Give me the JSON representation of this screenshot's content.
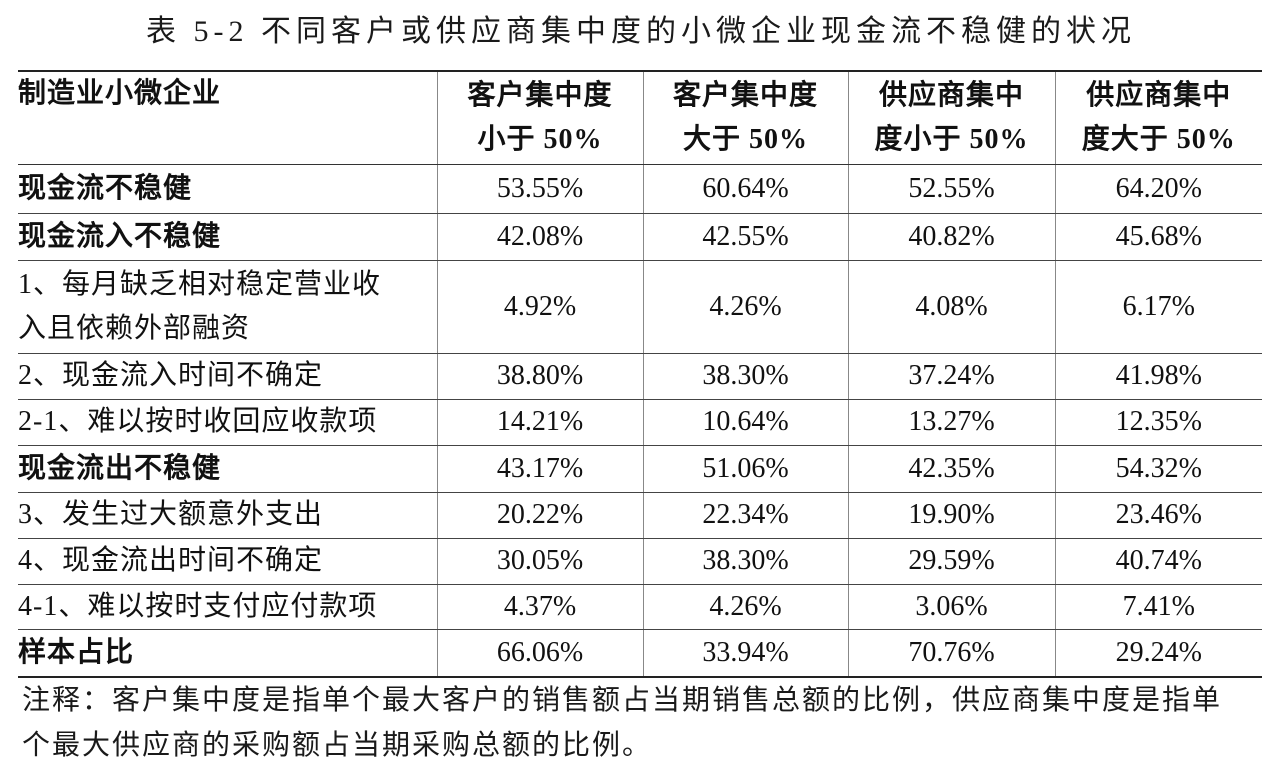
{
  "title": "表 5-2 不同客户或供应商集中度的小微企业现金流不稳健的状况",
  "table": {
    "header": {
      "row_label": "制造业小微企业",
      "columns": [
        {
          "lines": [
            "客户集中度",
            "小于 50%"
          ]
        },
        {
          "lines": [
            "客户集中度",
            "大于 50%"
          ]
        },
        {
          "lines": [
            "供应商集中",
            "度小于 50%"
          ]
        },
        {
          "lines": [
            "供应商集中",
            "度大于 50%"
          ]
        }
      ]
    },
    "rows": [
      {
        "label": "现金流不稳健",
        "values": [
          "53.55%",
          "60.64%",
          "52.55%",
          "64.20%"
        ]
      },
      {
        "label": "现金流入不稳健",
        "values": [
          "42.08%",
          "42.55%",
          "40.82%",
          "45.68%"
        ]
      },
      {
        "label": [
          "1、每月缺乏相对稳定营业收",
          "入且依赖外部融资"
        ],
        "values": [
          "4.92%",
          "4.26%",
          "4.08%",
          "6.17%"
        ]
      },
      {
        "label": "2、现金流入时间不确定",
        "values": [
          "38.80%",
          "38.30%",
          "37.24%",
          "41.98%"
        ]
      },
      {
        "label": "2-1、难以按时收回应收款项",
        "values": [
          "14.21%",
          "10.64%",
          "13.27%",
          "12.35%"
        ]
      },
      {
        "label": "现金流出不稳健",
        "values": [
          "43.17%",
          "51.06%",
          "42.35%",
          "54.32%"
        ]
      },
      {
        "label": "3、发生过大额意外支出",
        "values": [
          "20.22%",
          "22.34%",
          "19.90%",
          "23.46%"
        ]
      },
      {
        "label": "4、现金流出时间不确定",
        "values": [
          "30.05%",
          "38.30%",
          "29.59%",
          "40.74%"
        ]
      },
      {
        "label": "4-1、难以按时支付应付款项",
        "values": [
          "4.37%",
          "4.26%",
          "3.06%",
          "7.41%"
        ]
      },
      {
        "label": "样本占比",
        "values": [
          "66.06%",
          "33.94%",
          "70.76%",
          "29.24%"
        ]
      }
    ]
  },
  "footnote": [
    "注释：客户集中度是指单个最大客户的销售额占当期销售总额的比例，供应商集中度是指单",
    "个最大供应商的采购额占当期采购总额的比例。"
  ]
}
